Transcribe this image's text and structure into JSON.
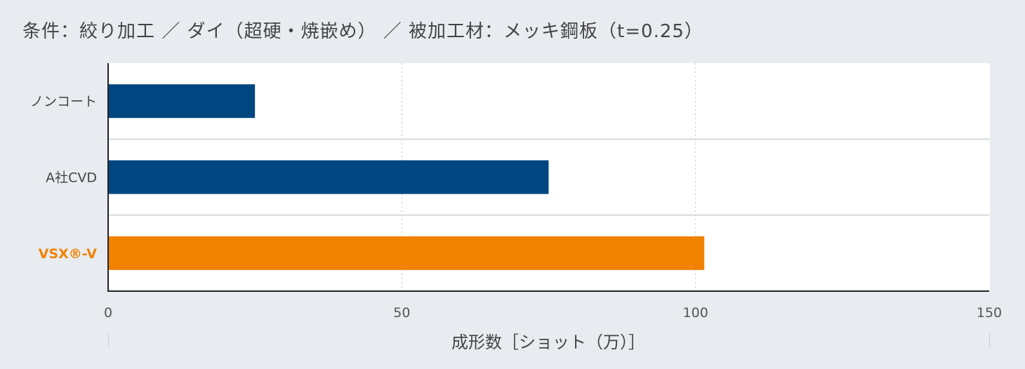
{
  "chart_data": {
    "type": "bar",
    "orientation": "horizontal",
    "title": "条件：絞り加工 ／ ダイ（超硬・焼嵌め） ／ 被加工材：メッキ鋼板（t=0.25）",
    "xlabel": "成形数［ショット（万）］",
    "ylabel": "",
    "categories": [
      "ノンコート",
      "A社CVD",
      "VSX®-V"
    ],
    "values": [
      25,
      75,
      101.5
    ],
    "colors": [
      "#004680",
      "#004680",
      "#f08200"
    ],
    "category_label_colors": [
      "#444444",
      "#444444",
      "#f08200"
    ],
    "xlim": [
      0,
      150
    ],
    "xticks": [
      "0",
      "50",
      "100",
      "150"
    ],
    "grid": "vertical dotted",
    "legend": "none"
  }
}
